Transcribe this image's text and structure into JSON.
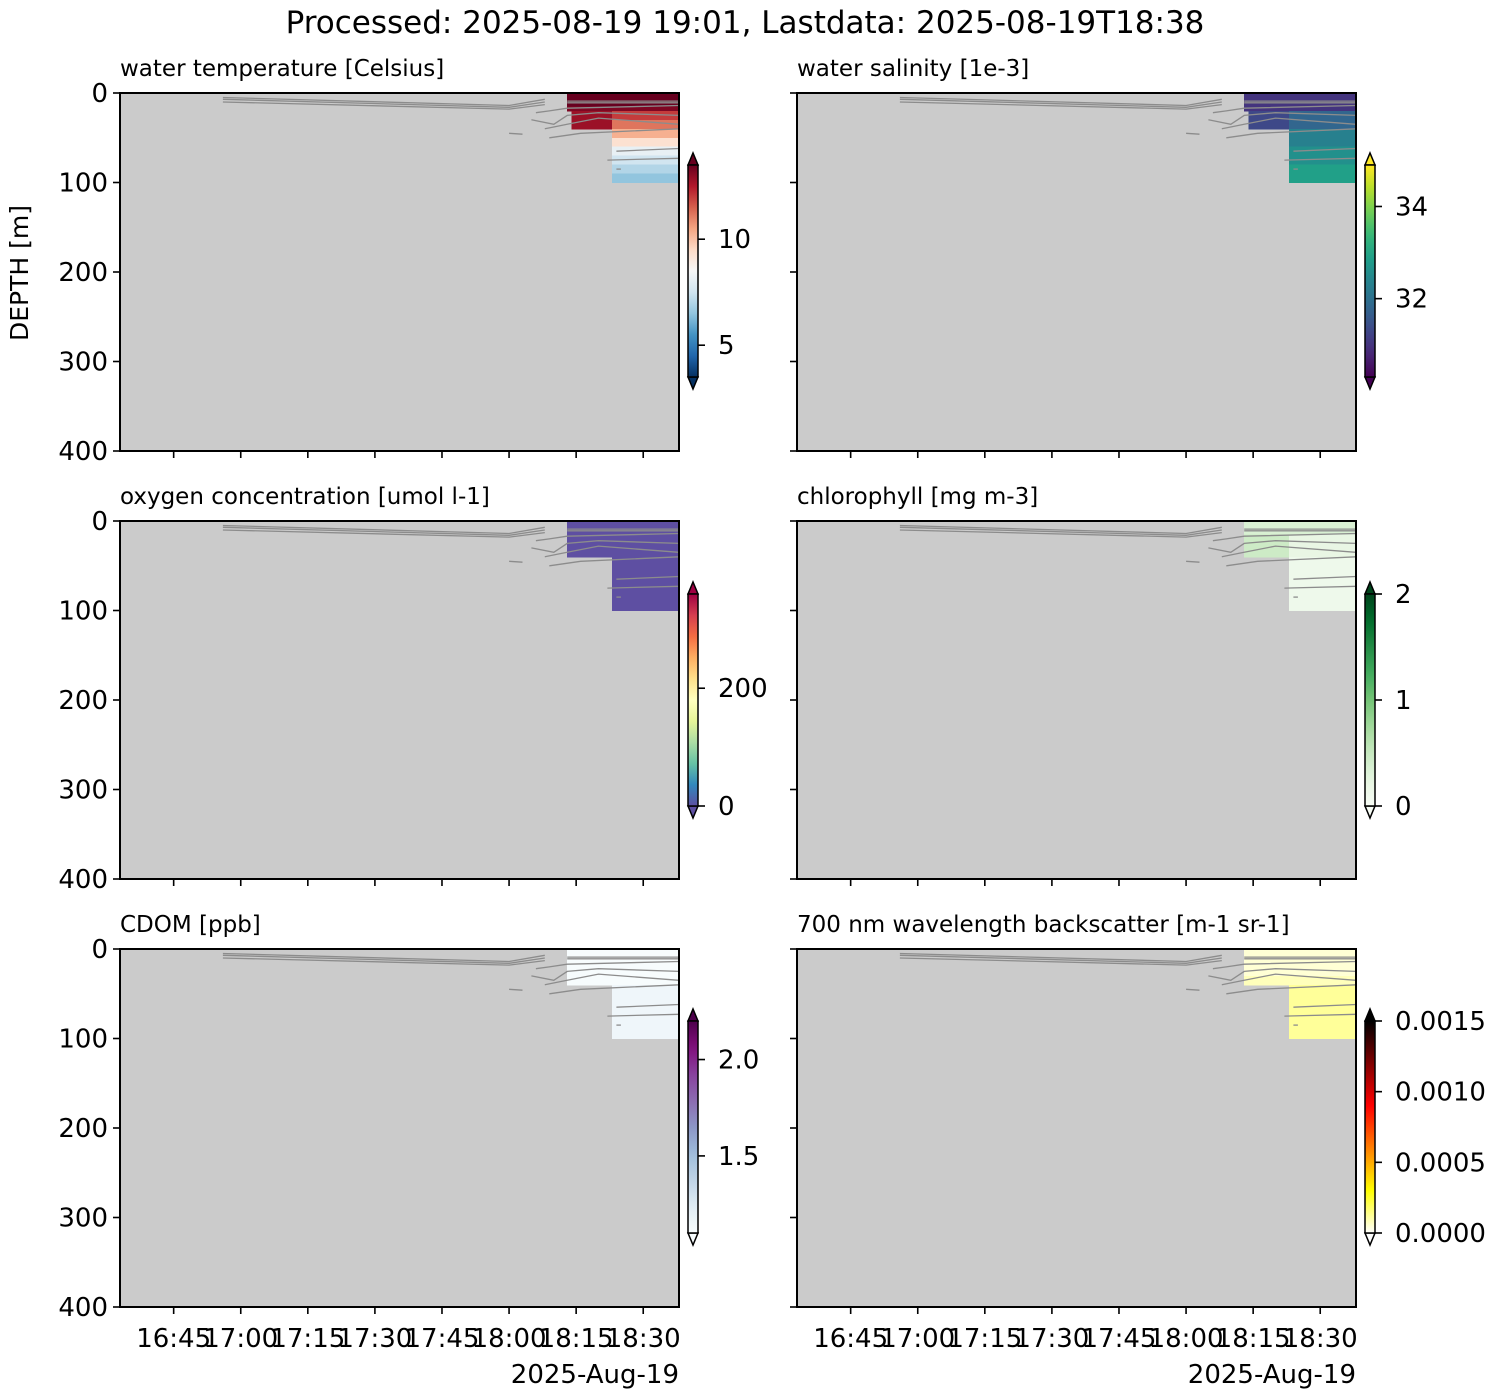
{
  "suptitle": "Processed: 2025-08-19 19:01, Lastdata: 2025-08-19T18:38",
  "ylabel": "DEPTH [m]",
  "date_label": "2025-Aug-19",
  "chart_data": {
    "type": "heatmap",
    "x_ticks": [
      "16:45",
      "17:00",
      "17:15",
      "17:30",
      "17:45",
      "18:00",
      "18:15",
      "18:30"
    ],
    "x_range": [
      "16:33",
      "18:38"
    ],
    "y_ticks": [
      0,
      100,
      200,
      300,
      400
    ],
    "ylim": [
      400,
      0
    ],
    "background_color": "#cbcbcb",
    "profile_line_color": "#8c8c8c",
    "panels": [
      {
        "title": "water temperature [Celsius]",
        "colormap": "RdBu_r",
        "colorbar": {
          "vmin": 3.5,
          "vmax": 13.5,
          "ticks": [
            5,
            10
          ],
          "extend": "both"
        },
        "cells": [
          {
            "t0": "18:13",
            "t1": "18:38",
            "z0": 0,
            "z1": 15,
            "value": 13.6
          },
          {
            "t0": "18:13",
            "t1": "18:38",
            "z0": 15,
            "z1": 20,
            "value": 13.2
          },
          {
            "t0": "18:14",
            "t1": "18:23",
            "z0": 20,
            "z1": 40,
            "value": 12.8
          },
          {
            "t0": "18:23",
            "t1": "18:38",
            "z0": 20,
            "z1": 30,
            "value": 12.0
          },
          {
            "t0": "18:23",
            "t1": "18:38",
            "z0": 30,
            "z1": 40,
            "value": 11.2
          },
          {
            "t0": "18:23",
            "t1": "18:38",
            "z0": 40,
            "z1": 50,
            "value": 10.3
          },
          {
            "t0": "18:23",
            "t1": "18:38",
            "z0": 50,
            "z1": 60,
            "value": 9.3
          },
          {
            "t0": "18:23",
            "t1": "18:38",
            "z0": 60,
            "z1": 70,
            "value": 8.1
          },
          {
            "t0": "18:23",
            "t1": "18:38",
            "z0": 70,
            "z1": 80,
            "value": 7.5
          },
          {
            "t0": "18:23",
            "t1": "18:38",
            "z0": 80,
            "z1": 90,
            "value": 7.0
          },
          {
            "t0": "18:23",
            "t1": "18:38",
            "z0": 90,
            "z1": 100,
            "value": 6.5
          }
        ]
      },
      {
        "title": "water salinity [1e-3]",
        "colormap": "viridis",
        "colorbar": {
          "vmin": 30.3,
          "vmax": 34.9,
          "ticks": [
            32,
            34
          ],
          "extend": "both"
        },
        "cells": [
          {
            "t0": "18:13",
            "t1": "18:38",
            "z0": 0,
            "z1": 20,
            "value": 31.0
          },
          {
            "t0": "18:14",
            "t1": "18:23",
            "z0": 20,
            "z1": 40,
            "value": 31.3
          },
          {
            "t0": "18:23",
            "t1": "18:38",
            "z0": 20,
            "z1": 40,
            "value": 31.8
          },
          {
            "t0": "18:23",
            "t1": "18:38",
            "z0": 40,
            "z1": 60,
            "value": 32.3
          },
          {
            "t0": "18:23",
            "t1": "18:38",
            "z0": 60,
            "z1": 80,
            "value": 32.6
          },
          {
            "t0": "18:23",
            "t1": "18:38",
            "z0": 80,
            "z1": 100,
            "value": 32.9
          }
        ]
      },
      {
        "title": "oxygen concentration [umol l-1]",
        "colormap": "Spectral_r",
        "colorbar": {
          "vmin": 0,
          "vmax": 360,
          "ticks": [
            0,
            200
          ],
          "extend": "both"
        },
        "cells": [
          {
            "t0": "18:13",
            "t1": "18:38",
            "z0": 0,
            "z1": 40,
            "value": 0
          },
          {
            "t0": "18:23",
            "t1": "18:38",
            "z0": 40,
            "z1": 100,
            "value": 0
          }
        ]
      },
      {
        "title": "chlorophyll [mg m-3]",
        "colormap": "Greens",
        "colorbar": {
          "vmin": 0,
          "vmax": 2,
          "ticks": [
            0,
            1,
            2
          ],
          "extend": "both"
        },
        "cells": [
          {
            "t0": "18:13",
            "t1": "18:38",
            "z0": 0,
            "z1": 15,
            "value": 0.35
          },
          {
            "t0": "18:13",
            "t1": "18:23",
            "z0": 15,
            "z1": 40,
            "value": 0.45
          },
          {
            "t0": "18:23",
            "t1": "18:38",
            "z0": 15,
            "z1": 40,
            "value": 0.2
          },
          {
            "t0": "18:23",
            "t1": "18:38",
            "z0": 40,
            "z1": 100,
            "value": 0.12
          }
        ]
      },
      {
        "title": "CDOM [ppb]",
        "colormap": "BuPu",
        "colorbar": {
          "vmin": 1.1,
          "vmax": 2.2,
          "ticks": [
            1.5,
            2.0
          ],
          "tick_labels": [
            "1.5",
            "2.0"
          ],
          "extend": "both"
        },
        "cells": [
          {
            "t0": "18:13",
            "t1": "18:38",
            "z0": 0,
            "z1": 40,
            "value": 1.1
          },
          {
            "t0": "18:23",
            "t1": "18:38",
            "z0": 40,
            "z1": 100,
            "value": 1.15
          }
        ]
      },
      {
        "title": "700 nm wavelength backscatter [m-1 sr-1]",
        "colormap": "hot_r",
        "colorbar": {
          "vmin": 0,
          "vmax": 0.0015,
          "ticks": [
            0,
            0.0005,
            0.001,
            0.0015
          ],
          "tick_labels": [
            "0.0000",
            "0.0005",
            "0.0010",
            "0.0015"
          ],
          "extend": "both"
        },
        "cells": [
          {
            "t0": "18:13",
            "t1": "18:38",
            "z0": 0,
            "z1": 30,
            "value": 5e-05
          },
          {
            "t0": "18:13",
            "t1": "18:38",
            "z0": 30,
            "z1": 40,
            "value": 8e-05
          },
          {
            "t0": "18:23",
            "t1": "18:38",
            "z0": 40,
            "z1": 100,
            "value": 0.00012
          }
        ]
      }
    ],
    "profiles": [
      [
        [
          "16:56",
          5
        ],
        [
          "18:00",
          14
        ],
        [
          "18:08",
          7
        ]
      ],
      [
        [
          "16:56",
          7
        ],
        [
          "18:00",
          16
        ],
        [
          "18:08",
          10
        ]
      ],
      [
        [
          "16:56",
          10
        ],
        [
          "18:00",
          18
        ],
        [
          "18:08",
          13
        ]
      ],
      [
        [
          "18:13",
          9
        ],
        [
          "18:38",
          9
        ]
      ],
      [
        [
          "18:13",
          11
        ],
        [
          "18:38",
          11
        ]
      ],
      [
        [
          "18:06",
          22
        ],
        [
          "18:09",
          20
        ],
        [
          "18:13",
          17
        ],
        [
          "18:38",
          14
        ]
      ],
      [
        [
          "18:05",
          30
        ],
        [
          "18:10",
          35
        ],
        [
          "18:13",
          25
        ],
        [
          "18:20",
          22
        ],
        [
          "18:38",
          25
        ]
      ],
      [
        [
          "18:08",
          40
        ],
        [
          "18:13",
          35
        ],
        [
          "18:20",
          28
        ],
        [
          "18:38",
          35
        ]
      ],
      [
        [
          "18:00",
          45
        ],
        [
          "18:03",
          46
        ]
      ],
      [
        [
          "18:09",
          50
        ],
        [
          "18:16",
          45
        ],
        [
          "18:38",
          40
        ]
      ],
      [
        [
          "18:24",
          65
        ],
        [
          "18:38",
          62
        ]
      ],
      [
        [
          "18:22",
          75
        ],
        [
          "18:38",
          73
        ]
      ],
      [
        [
          "18:24",
          85
        ],
        [
          "18:25",
          85
        ]
      ]
    ]
  }
}
